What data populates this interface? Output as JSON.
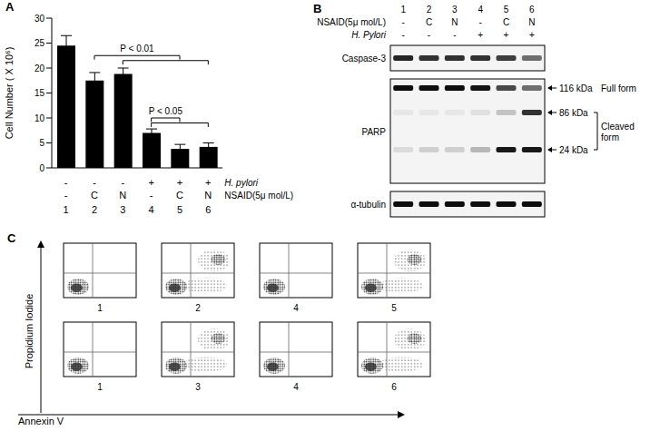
{
  "panel_labels": [
    "A",
    "B",
    "C"
  ],
  "chart_data": {
    "type": "bar",
    "categories": [
      "1",
      "2",
      "3",
      "4",
      "5",
      "6"
    ],
    "values": [
      24.5,
      17.5,
      18.8,
      7,
      3.8,
      4.2
    ],
    "errors": [
      2,
      1.6,
      1.2,
      0.8,
      0.9,
      0.8
    ],
    "color": "#000000",
    "ylim": [
      0,
      30
    ],
    "yticks": [
      0,
      5,
      10,
      15,
      20,
      25,
      30
    ],
    "y_label": "Cell Number ( X 10⁶)",
    "grid": false,
    "condition_rows": [
      {
        "label": "H. pylori",
        "entries": [
          "-",
          "-",
          "-",
          "+",
          "+",
          "+"
        ]
      },
      {
        "label": "NSAID(5μ mol/L)",
        "entries": [
          "-",
          "C",
          "N",
          "-",
          "C",
          "N"
        ]
      }
    ],
    "comparisons": [
      {
        "label": "P < 0.01",
        "y": 22.5,
        "pairs": [
          [
            2,
            5
          ],
          [
            3,
            6
          ]
        ]
      },
      {
        "label": "P < 0.05",
        "y": 10,
        "pairs": [
          [
            4,
            5
          ],
          [
            4,
            6
          ]
        ]
      }
    ]
  },
  "blot": {
    "lanes": [
      "1",
      "2",
      "3",
      "4",
      "5",
      "6"
    ],
    "conditions": [
      {
        "label": "NSAID(5μ mol/L)",
        "entries": [
          "-",
          "C",
          "N",
          "-",
          "C",
          "N"
        ]
      },
      {
        "label": "H. Pylori",
        "entries": [
          "-",
          "-",
          "-",
          "+",
          "+",
          "+"
        ]
      }
    ],
    "rows": [
      {
        "label": "Caspase-3",
        "bands": [
          {
            "intensity": [
              0.85,
              0.8,
              0.8,
              0.8,
              0.75,
              0.55
            ]
          }
        ]
      },
      {
        "label": "PARP",
        "bands": [
          {
            "kda": "116 kDa",
            "form": "Full form",
            "intensity": [
              0.95,
              0.95,
              0.95,
              0.92,
              0.7,
              0.55
            ]
          },
          {
            "kda": "86 kDa",
            "intensity": [
              0.05,
              0.05,
              0.05,
              0.08,
              0.2,
              0.8
            ]
          },
          {
            "kda": "24 kDa",
            "intensity": [
              0.1,
              0.15,
              0.15,
              0.25,
              0.9,
              0.9
            ]
          }
        ],
        "cleaved_form": "Cleaved form"
      },
      {
        "label": "α-tubulin",
        "bands": [
          {
            "intensity": [
              0.95,
              0.95,
              0.95,
              0.95,
              0.95,
              0.95
            ]
          }
        ]
      }
    ]
  },
  "flow": {
    "y_label": "Propidium Iodide",
    "x_label": "Annexin V",
    "rows": [
      [
        {
          "label": "1",
          "apoptosis": false
        },
        {
          "label": "2",
          "apoptosis": true
        },
        {
          "label": "4",
          "apoptosis": false
        },
        {
          "label": "5",
          "apoptosis": true
        }
      ],
      [
        {
          "label": "1",
          "apoptosis": false
        },
        {
          "label": "3",
          "apoptosis": true
        },
        {
          "label": "4",
          "apoptosis": false
        },
        {
          "label": "6",
          "apoptosis": true
        }
      ]
    ]
  }
}
